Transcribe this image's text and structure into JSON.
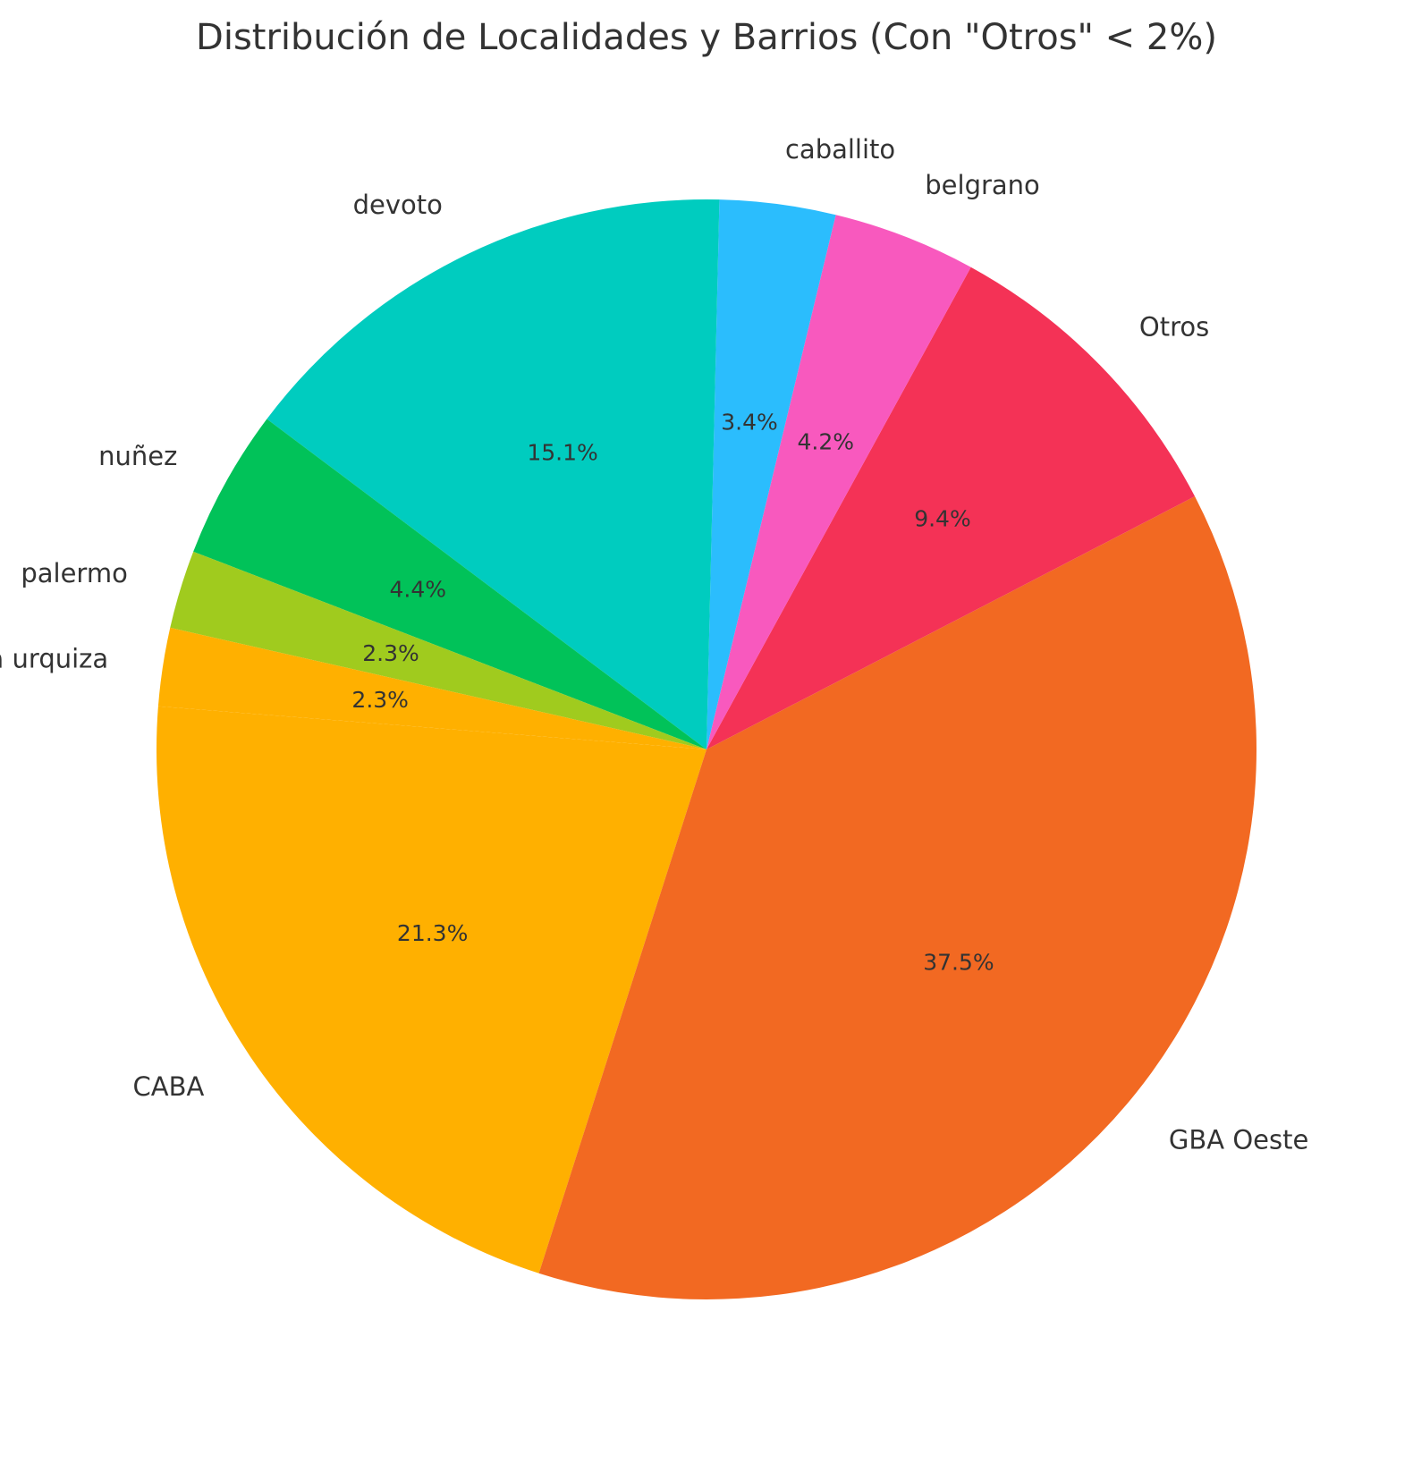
{
  "chart_data": {
    "type": "pie",
    "title": "Distribución de Localidades y Barrios (Con \"Otros\" < 2%)",
    "counterclock": true,
    "start_angle_deg": 175.5,
    "slices": [
      {
        "label": "CABA",
        "value": 21.3,
        "pct_label": "21.3%",
        "color": "#FFB000"
      },
      {
        "label": "GBA Oeste",
        "value": 37.5,
        "pct_label": "37.5%",
        "color": "#F26922"
      },
      {
        "label": "Otros",
        "value": 9.4,
        "pct_label": "9.4%",
        "color": "#F43256"
      },
      {
        "label": "belgrano",
        "value": 4.2,
        "pct_label": "4.2%",
        "color": "#F859BE"
      },
      {
        "label": "caballito",
        "value": 3.4,
        "pct_label": "3.4%",
        "color": "#2BBDFD"
      },
      {
        "label": "devoto",
        "value": 15.1,
        "pct_label": "15.1%",
        "color": "#00CCBF"
      },
      {
        "label": "nuñez",
        "value": 4.4,
        "pct_label": "4.4%",
        "color": "#01C259"
      },
      {
        "label": "palermo",
        "value": 2.3,
        "pct_label": "2.3%",
        "color": "#A0CB1E"
      },
      {
        "label": "villa urquiza",
        "value": 2.3,
        "pct_label": "2.3%",
        "color": "#FFB000"
      }
    ]
  }
}
